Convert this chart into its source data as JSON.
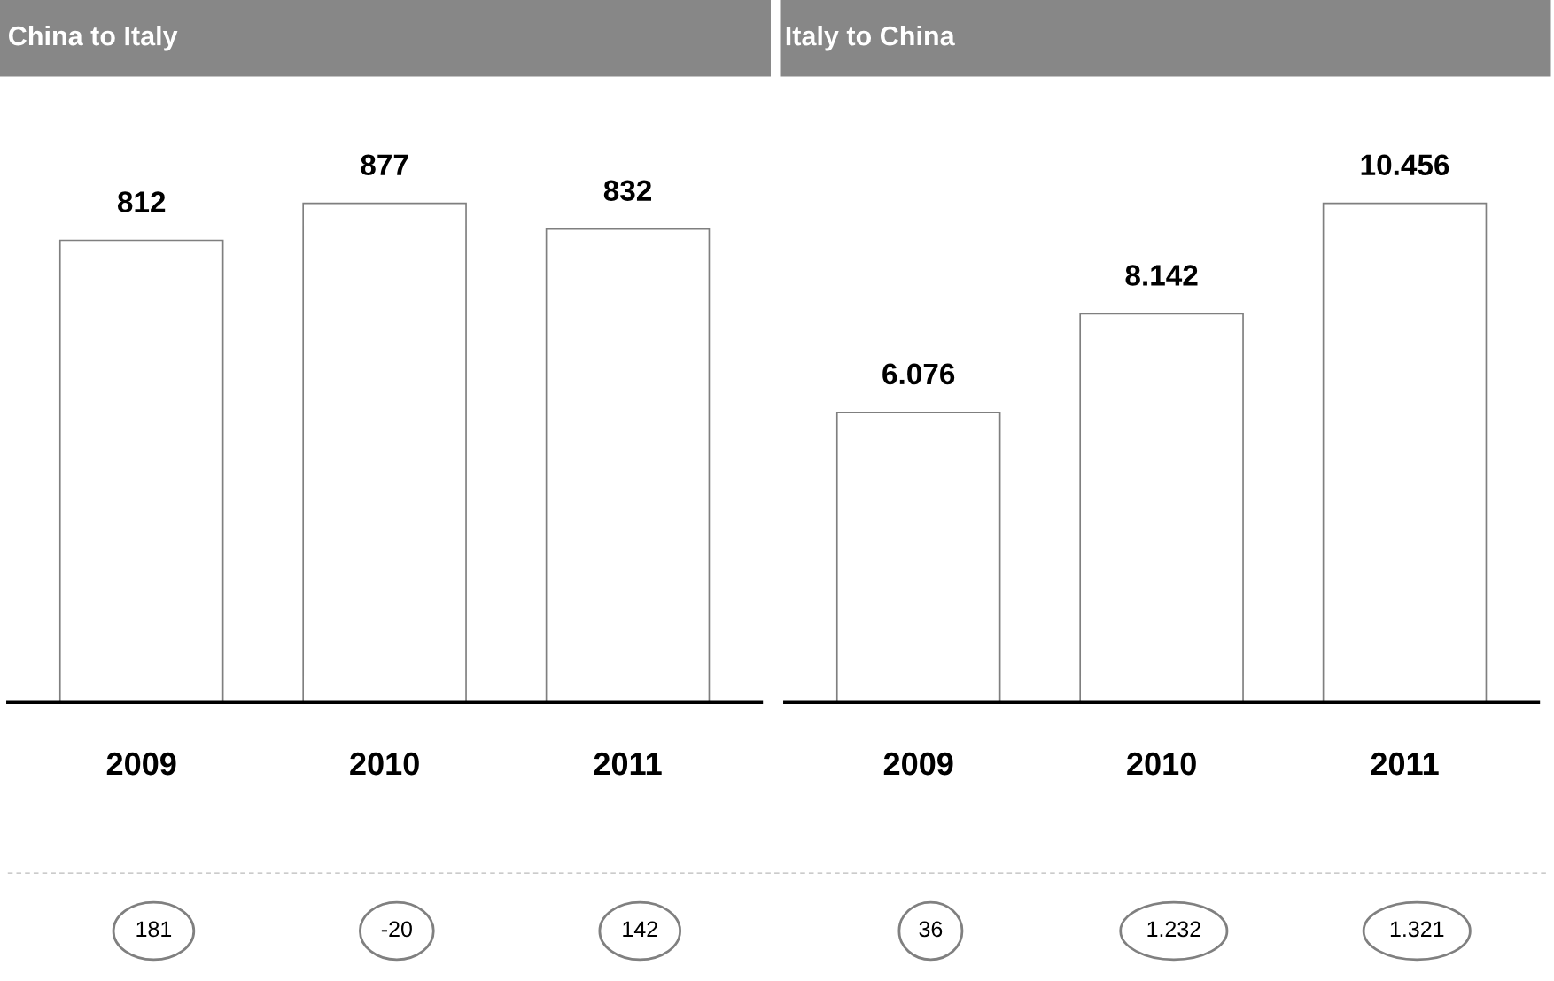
{
  "chart_data": [
    {
      "type": "bar",
      "title": "China to Italy",
      "categories": [
        "2009",
        "2010",
        "2011"
      ],
      "values": [
        812,
        877,
        832
      ],
      "data_labels": true,
      "color": "#ffffff",
      "tick_labels": "x",
      "grid": false,
      "legend": false,
      "annotations": [
        "181",
        "-20",
        "142"
      ]
    },
    {
      "type": "bar",
      "title": "Italy to China",
      "categories": [
        "2009",
        "2010",
        "2011"
      ],
      "values": [
        6076,
        8142,
        10456
      ],
      "value_labels": [
        "6.076",
        "8.142",
        "10.456"
      ],
      "color": "#ffffff",
      "tick_labels": "x",
      "grid": false,
      "legend": false,
      "annotations": [
        "36",
        "1.232",
        "1.321"
      ]
    }
  ]
}
